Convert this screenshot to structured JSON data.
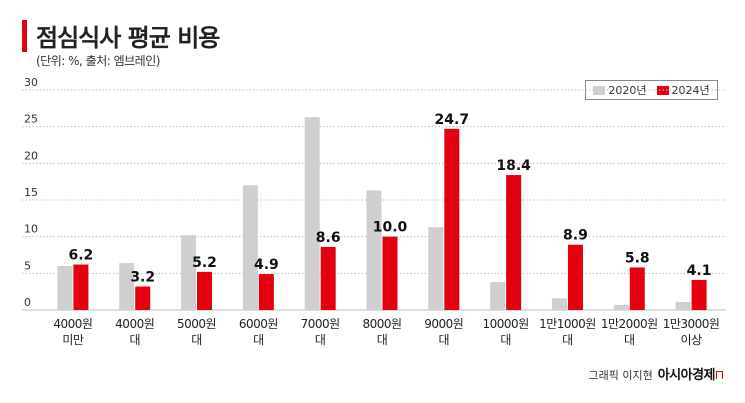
{
  "header": {
    "title": "점심식사 평균 비용",
    "subtitle": "(단위: %, 출처: 엠브레인)"
  },
  "colors": {
    "accent": "#e3000f",
    "series_2020": "#cfcfcf",
    "series_2024": "#e3000f"
  },
  "legend": {
    "items": [
      {
        "label": "2020년"
      },
      {
        "label": "2024년"
      }
    ]
  },
  "chart_data": {
    "type": "bar",
    "title": "점심식사 평균 비용",
    "subtitle": "(단위: %, 출처: 엠브레인)",
    "categories": [
      [
        "4000원",
        "미만"
      ],
      [
        "4000원",
        "대"
      ],
      [
        "5000원",
        "대"
      ],
      [
        "6000원",
        "대"
      ],
      [
        "7000원",
        "대"
      ],
      [
        "8000원",
        "대"
      ],
      [
        "9000원",
        "대"
      ],
      [
        "10000원",
        "대"
      ],
      [
        "1만1000원",
        "대"
      ],
      [
        "1만2000원",
        "대"
      ],
      [
        "1만3000원",
        "이상"
      ]
    ],
    "series": [
      {
        "name": "2020년",
        "values": [
          6.0,
          6.4,
          10.2,
          17.0,
          26.3,
          16.3,
          11.3,
          3.8,
          1.6,
          0.7,
          1.1
        ],
        "labeled": false
      },
      {
        "name": "2024년",
        "values": [
          6.2,
          3.2,
          5.2,
          4.9,
          8.6,
          10.0,
          24.7,
          18.4,
          8.9,
          5.8,
          4.1
        ],
        "labeled": true
      }
    ],
    "yticks": [
      0,
      5,
      10,
      15,
      20,
      25,
      30
    ],
    "ylim": [
      0,
      30
    ],
    "grid": true,
    "legend_position": "top-right"
  },
  "footer": {
    "credit": "그래픽 이지현",
    "brand": "아시아경제"
  }
}
